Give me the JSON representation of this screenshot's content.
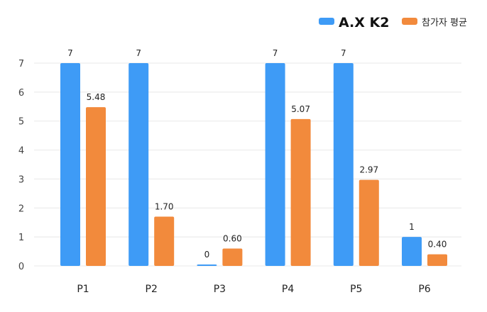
{
  "colors": {
    "series1": "#3E9BF6",
    "series2": "#F28A3C",
    "grid": "#E8E8E8",
    "text": "#222222"
  },
  "legend": {
    "series1_brand": "A.X K2",
    "series2_label": "참가자 평균"
  },
  "chart_data": {
    "type": "bar",
    "categories": [
      "P1",
      "P2",
      "P3",
      "P4",
      "P5",
      "P6"
    ],
    "series": [
      {
        "name": "A.X K2",
        "values": [
          7,
          7,
          0,
          7,
          7,
          1
        ],
        "labels": [
          "7",
          "7",
          "0",
          "7",
          "7",
          "1"
        ]
      },
      {
        "name": "참가자 평균",
        "values": [
          5.48,
          1.7,
          0.6,
          5.07,
          2.97,
          0.4
        ],
        "labels": [
          "5.48",
          "1.70",
          "0.60",
          "5.07",
          "2.97",
          "0.40"
        ]
      }
    ],
    "yticks": [
      "0",
      "1",
      "2",
      "3",
      "4",
      "5",
      "6",
      "7"
    ],
    "ylim": [
      0,
      7
    ],
    "grid": true,
    "legend_position": "top-right"
  }
}
